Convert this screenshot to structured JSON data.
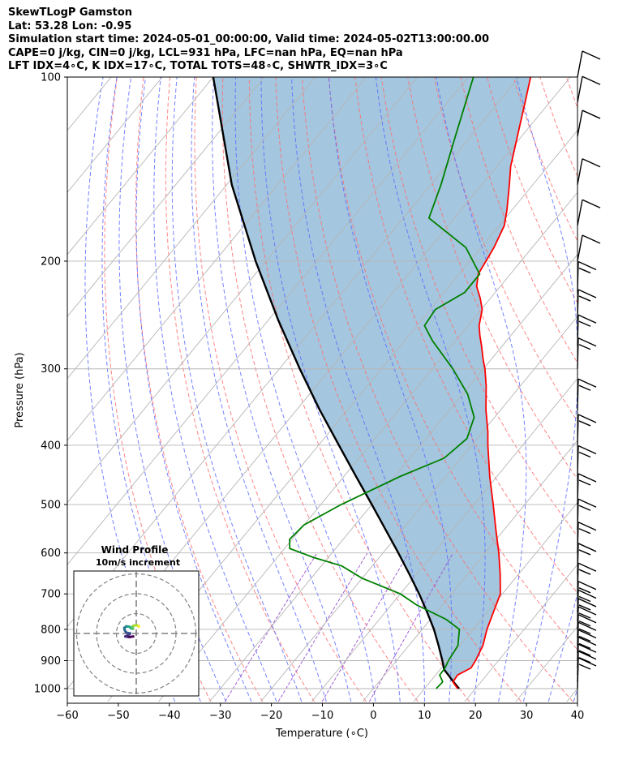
{
  "header": {
    "line1": "SkewTLogP Gamston",
    "line2": "Lat: 53.28   Lon: -0.95",
    "line3": "Simulation start time: 2024-05-01_00:00:00, Valid time: 2024-05-02T13:00:00.00",
    "line4": "CAPE=0 j/kg, CIN=0 j/kg, LCL=931 hPa, LFC=nan hPa, EQ=nan hPa",
    "line5": "LFT IDX=4∘C, K IDX=17∘C, TOTAL TOTS=48∘C, SHWTR_IDX=3∘C"
  },
  "chart_data": {
    "type": "line",
    "title": "SkewTLogP Gamston",
    "xlabel": "Temperature (∘C)",
    "ylabel": "Pressure (hPa)",
    "xlim": [
      -60,
      40
    ],
    "ylim": [
      1050,
      100
    ],
    "x_ticks": [
      "−60",
      "−50",
      "−40",
      "−30",
      "−20",
      "−10",
      "0",
      "10",
      "20",
      "30",
      "40"
    ],
    "y_ticks": [
      1000,
      900,
      800,
      700,
      600,
      500,
      400,
      300,
      200,
      100
    ],
    "colors": {
      "temperature": "#ff0000",
      "dewpoint": "#008000",
      "parcel": "#000000",
      "fill": "#a4c6df",
      "dry_adiabat": "#ff6f6f",
      "moist_adiabat": "#5c6cff",
      "mixing_ratio": "#9a4fcc",
      "isotherm": "#b5b5b5",
      "grid": "#b5b5b5"
    },
    "series": [
      {
        "name": "Temperature",
        "points": [
          [
            1000,
            16.5
          ],
          [
            975,
            14.5
          ],
          [
            950,
            14.3
          ],
          [
            925,
            15.8
          ],
          [
            900,
            15.5
          ],
          [
            850,
            14.5
          ],
          [
            800,
            12.7
          ],
          [
            750,
            11.2
          ],
          [
            700,
            9.6
          ],
          [
            650,
            6.4
          ],
          [
            600,
            2.7
          ],
          [
            550,
            -1.6
          ],
          [
            500,
            -6.2
          ],
          [
            450,
            -11.4
          ],
          [
            400,
            -16.8
          ],
          [
            380,
            -19.0
          ],
          [
            350,
            -22.9
          ],
          [
            320,
            -26.7
          ],
          [
            300,
            -29.7
          ],
          [
            290,
            -31.5
          ],
          [
            275,
            -34.1
          ],
          [
            265,
            -36.0
          ],
          [
            255,
            -37.8
          ],
          [
            240,
            -39.8
          ],
          [
            230,
            -42.0
          ],
          [
            220,
            -44.6
          ],
          [
            210,
            -46.3
          ],
          [
            190,
            -47.5
          ],
          [
            175,
            -49.0
          ],
          [
            165,
            -51.0
          ],
          [
            150,
            -54.6
          ],
          [
            140,
            -57.3
          ],
          [
            120,
            -62.1
          ],
          [
            110,
            -64.8
          ],
          [
            100,
            -67.8
          ]
        ]
      },
      {
        "name": "Dewpoint",
        "points": [
          [
            1000,
            12.3
          ],
          [
            975,
            12.5
          ],
          [
            950,
            10.8
          ],
          [
            925,
            10.7
          ],
          [
            900,
            10.2
          ],
          [
            850,
            9.6
          ],
          [
            800,
            7.3
          ],
          [
            770,
            3.0
          ],
          [
            730,
            -5.0
          ],
          [
            700,
            -10.0
          ],
          [
            660,
            -20.0
          ],
          [
            630,
            -26.0
          ],
          [
            610,
            -33.0
          ],
          [
            590,
            -39.0
          ],
          [
            570,
            -40.5
          ],
          [
            540,
            -40.0
          ],
          [
            500,
            -36.0
          ],
          [
            450,
            -29.0
          ],
          [
            420,
            -23.3
          ],
          [
            390,
            -22.0
          ],
          [
            360,
            -24.0
          ],
          [
            330,
            -29.0
          ],
          [
            300,
            -36.0
          ],
          [
            270,
            -44.5
          ],
          [
            255,
            -48.5
          ],
          [
            240,
            -49.0
          ],
          [
            225,
            -46.0
          ],
          [
            210,
            -46.0
          ],
          [
            190,
            -53.0
          ],
          [
            170,
            -65.0
          ],
          [
            150,
            -68.0
          ],
          [
            125,
            -73.0
          ],
          [
            100,
            -79.0
          ]
        ]
      },
      {
        "name": "Parcel profile",
        "points": [
          [
            1000,
            16.8
          ],
          [
            975,
            14.6
          ],
          [
            950,
            12.5
          ],
          [
            931,
            10.8
          ],
          [
            900,
            9.0
          ],
          [
            850,
            5.8
          ],
          [
            800,
            2.3
          ],
          [
            750,
            -1.8
          ],
          [
            700,
            -6.3
          ],
          [
            650,
            -11.4
          ],
          [
            600,
            -17.0
          ],
          [
            550,
            -23.2
          ],
          [
            500,
            -30.0
          ],
          [
            450,
            -37.6
          ],
          [
            400,
            -46.0
          ],
          [
            350,
            -55.5
          ],
          [
            300,
            -66.0
          ],
          [
            250,
            -78.0
          ],
          [
            200,
            -92.0
          ],
          [
            150,
            -109.0
          ],
          [
            100,
            -130.0
          ]
        ]
      }
    ],
    "wind_barbs": {
      "pressures": [
        1000,
        975,
        950,
        925,
        900,
        875,
        850,
        825,
        800,
        775,
        750,
        700,
        650,
        600,
        550,
        500,
        450,
        400,
        350,
        300,
        275,
        250,
        225,
        200,
        175,
        150,
        125,
        110,
        100
      ]
    },
    "hodograph": {
      "title": "Wind Profile",
      "subtitle": "10m/s increment",
      "rings_ms": [
        10,
        20,
        30
      ],
      "points": [
        [
          -1.5,
          -1.5
        ],
        [
          -3.5,
          -1.8
        ],
        [
          -5.5,
          -1.5
        ],
        [
          -4.2,
          -1.0
        ],
        [
          -3.0,
          0.0
        ],
        [
          -5.0,
          0.4
        ],
        [
          -5.8,
          1.6
        ],
        [
          -6.0,
          2.8
        ],
        [
          -5.0,
          3.6
        ],
        [
          -3.5,
          3.4
        ],
        [
          -2.5,
          2.5
        ],
        [
          -1.6,
          2.4
        ],
        [
          -2.0,
          3.4
        ],
        [
          -1.2,
          4.0
        ],
        [
          0.2,
          4.2
        ],
        [
          1.2,
          3.8
        ],
        [
          1.2,
          3.3
        ]
      ]
    }
  }
}
